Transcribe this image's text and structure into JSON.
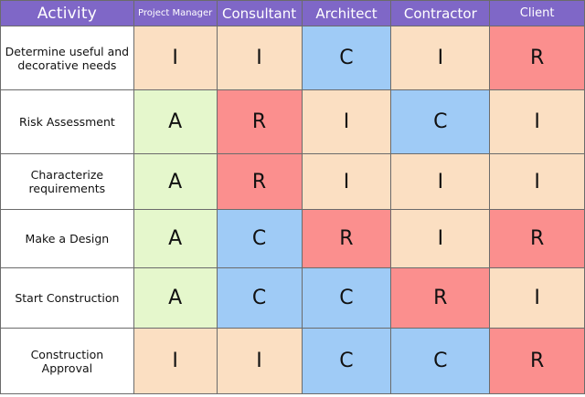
{
  "colors": {
    "header": "#7f67c7",
    "I": "#fbdfc2",
    "R": "#fb8f8e",
    "C": "#9fcbf6",
    "A": "#e5f7cc"
  },
  "header": {
    "activity": "Activity",
    "roles": [
      "Project Manager",
      "Consultant",
      "Architect",
      "Contractor",
      "Client"
    ]
  },
  "rows": [
    {
      "activity": "Determine useful and decorative needs",
      "values": [
        "I",
        "I",
        "C",
        "I",
        "R"
      ]
    },
    {
      "activity": "Risk Assessment",
      "values": [
        "A",
        "R",
        "I",
        "C",
        "I"
      ]
    },
    {
      "activity": "Characterize requirements",
      "values": [
        "A",
        "R",
        "I",
        "I",
        "I"
      ]
    },
    {
      "activity": "Make a Design",
      "values": [
        "A",
        "C",
        "R",
        "I",
        "R"
      ]
    },
    {
      "activity": "Start Construction",
      "values": [
        "A",
        "C",
        "C",
        "R",
        "I"
      ]
    },
    {
      "activity": "Construction Approval",
      "values": [
        "I",
        "I",
        "C",
        "C",
        "R"
      ]
    }
  ]
}
